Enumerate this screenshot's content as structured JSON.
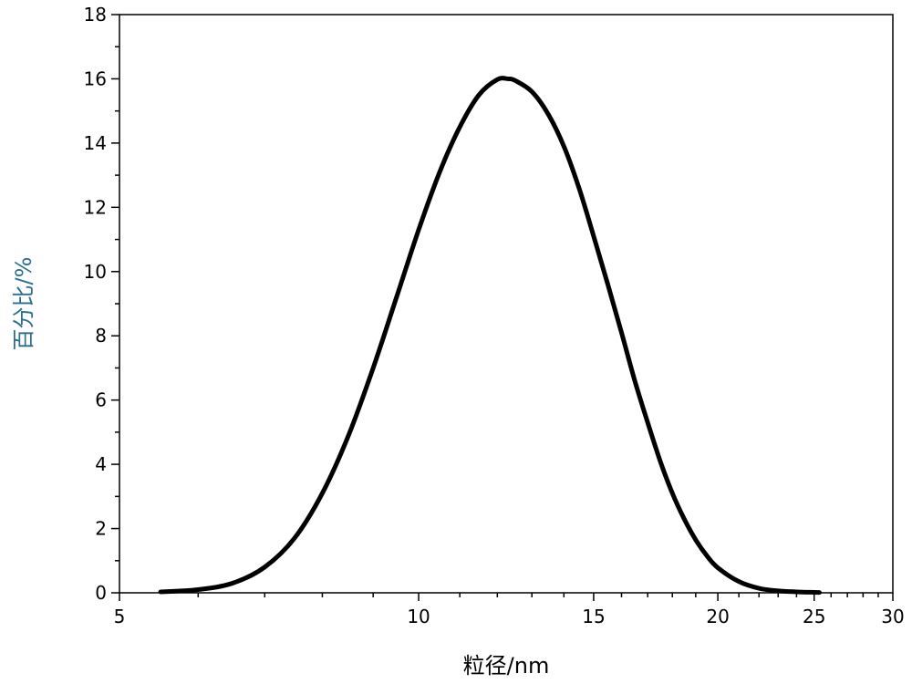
{
  "chart_data": {
    "type": "line",
    "xlabel": "粒径/nm",
    "ylabel": "百分比/%",
    "xscale": "log",
    "xlim": [
      5,
      30
    ],
    "ylim": [
      0,
      18
    ],
    "x_ticks": [
      5,
      10,
      15,
      20,
      25,
      30
    ],
    "y_ticks": [
      0,
      2,
      4,
      6,
      8,
      10,
      12,
      14,
      16,
      18
    ],
    "grid": false,
    "colors": {
      "line": "#000000",
      "axis": "#000000",
      "ylabel": "#2a6f8f",
      "xlabel": "#000000"
    },
    "series": [
      {
        "x": [
          5.5,
          6.0,
          6.5,
          7.0,
          7.5,
          8.0,
          8.5,
          9.0,
          9.5,
          10.0,
          10.5,
          11.0,
          11.5,
          12.0,
          12.3,
          12.5,
          13.0,
          13.5,
          14.0,
          14.5,
          15.0,
          15.5,
          16.0,
          16.5,
          17.0,
          17.5,
          18.0,
          18.5,
          19.0,
          19.5,
          20.0,
          21.0,
          22.0,
          23.0,
          24.0,
          25.3
        ],
        "y": [
          0.03,
          0.1,
          0.3,
          0.8,
          1.7,
          3.1,
          4.9,
          7.0,
          9.2,
          11.3,
          13.1,
          14.5,
          15.5,
          15.98,
          16.0,
          15.95,
          15.6,
          14.9,
          13.9,
          12.6,
          11.1,
          9.6,
          8.1,
          6.6,
          5.3,
          4.1,
          3.1,
          2.3,
          1.65,
          1.15,
          0.78,
          0.35,
          0.14,
          0.06,
          0.03,
          0.01
        ]
      }
    ]
  }
}
